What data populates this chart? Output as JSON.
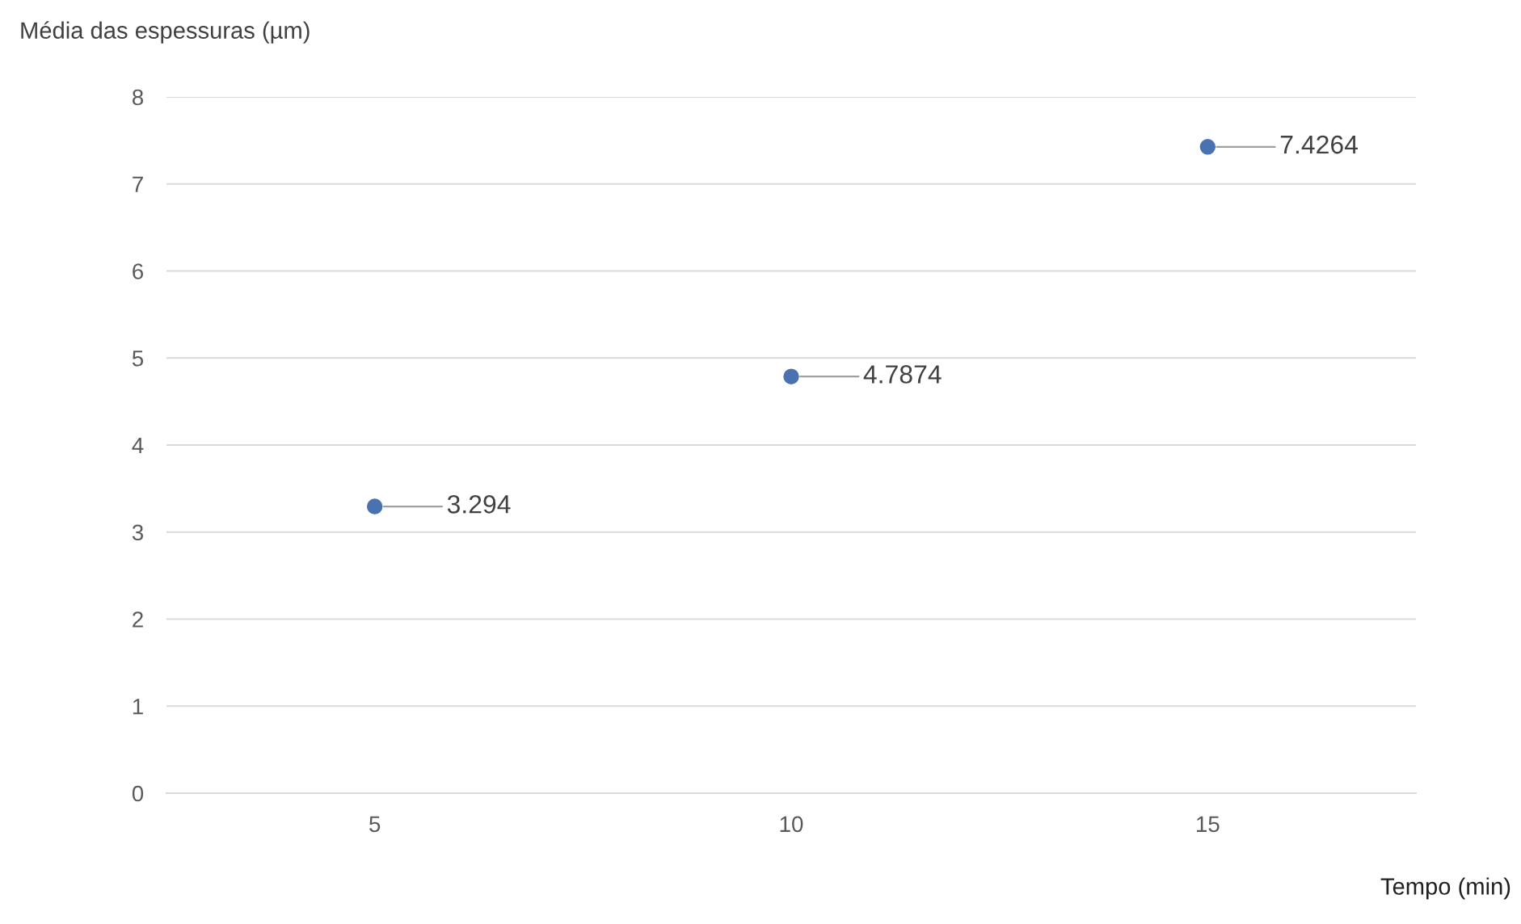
{
  "chart_data": {
    "type": "scatter",
    "xlabel": "Tempo (min)",
    "ylabel": "Média das espessuras (µm)",
    "categories": [
      "5",
      "10",
      "15"
    ],
    "series": [
      {
        "color": "#4a72b0",
        "values": [
          3.294,
          4.7874,
          7.4264
        ]
      }
    ],
    "ylim": [
      0,
      8
    ],
    "yticks": [
      0,
      1,
      2,
      3,
      4,
      5,
      6,
      7,
      8
    ],
    "grid": "y",
    "marker": "circle",
    "data_labels": true,
    "legend": false
  }
}
